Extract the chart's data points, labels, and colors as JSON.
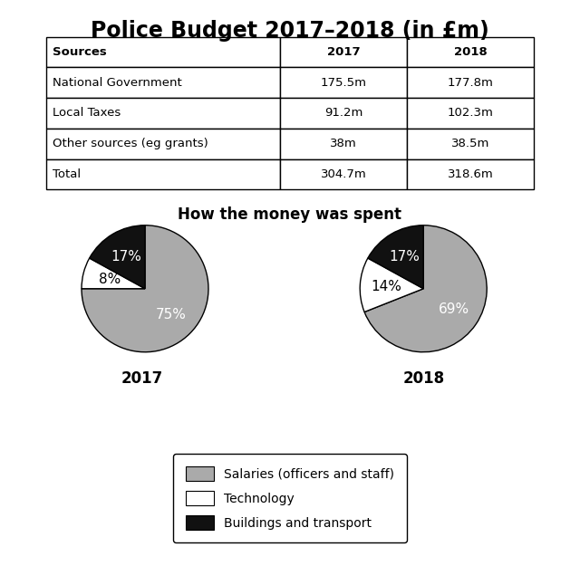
{
  "title": "Police Budget 2017–2018 (in £m)",
  "table": {
    "headers": [
      "Sources",
      "2017",
      "2018"
    ],
    "rows": [
      [
        "National Government",
        "175.5m",
        "177.8m"
      ],
      [
        "Local Taxes",
        "91.2m",
        "102.3m"
      ],
      [
        "Other sources (eg grants)",
        "38m",
        "38.5m"
      ],
      [
        "Total",
        "304.7m",
        "318.6m"
      ]
    ]
  },
  "pie_title": "How the money was spent",
  "pie_2017": {
    "label": "2017",
    "values": [
      75,
      8,
      17
    ],
    "labels": [
      "75%",
      "8%",
      "17%"
    ],
    "colors": [
      "#aaaaaa",
      "#ffffff",
      "#111111"
    ],
    "startangle": 90
  },
  "pie_2018": {
    "label": "2018",
    "values": [
      69,
      14,
      17
    ],
    "labels": [
      "69%",
      "14%",
      "17%"
    ],
    "colors": [
      "#aaaaaa",
      "#ffffff",
      "#111111"
    ],
    "startangle": 90
  },
  "legend_labels": [
    "Salaries (officers and staff)",
    "Technology",
    "Buildings and transport"
  ],
  "legend_colors": [
    "#aaaaaa",
    "#ffffff",
    "#111111"
  ],
  "background_color": "#ffffff",
  "title_fontsize": 17,
  "pie_title_fontsize": 12,
  "table_fontsize": 9.5,
  "label_fontsize": 11,
  "year_fontsize": 12,
  "legend_fontsize": 10
}
